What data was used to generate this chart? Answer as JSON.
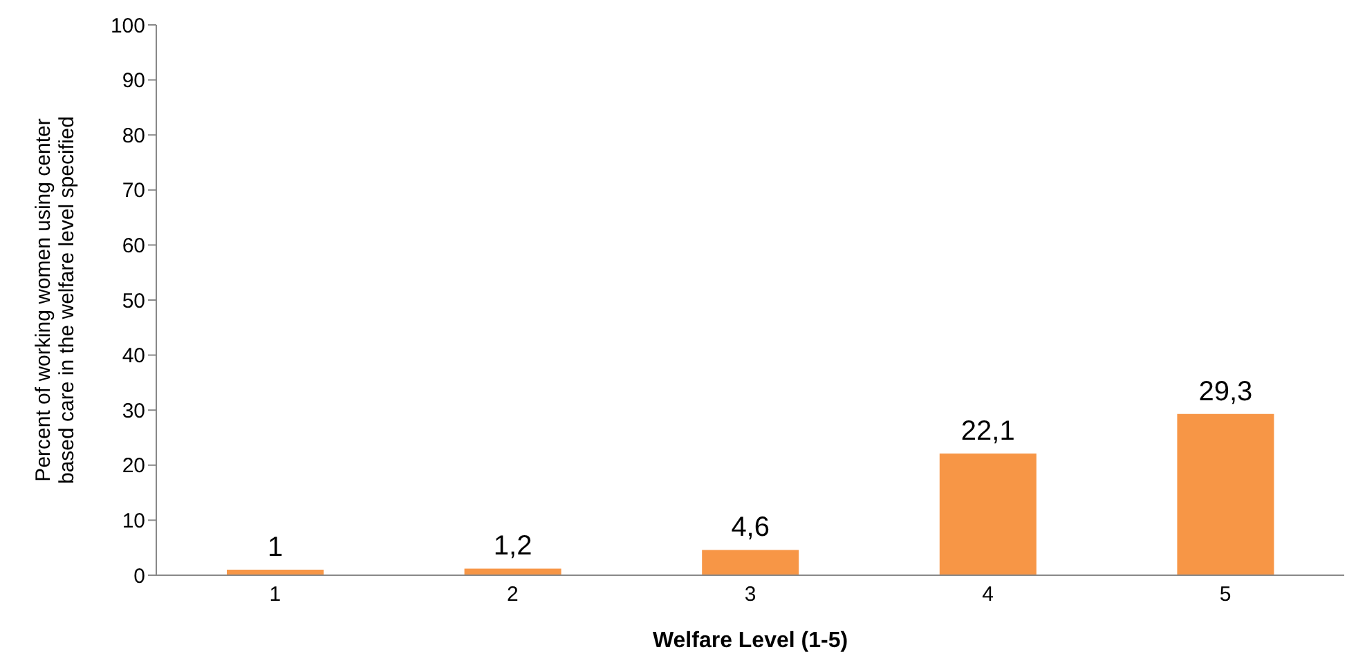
{
  "chart_data": {
    "type": "bar",
    "xlabel": "Welfare Level (1-5)",
    "ylabel": "Percent of working women using center based care in the welfare level specified",
    "categories": [
      "1",
      "2",
      "3",
      "4",
      "5"
    ],
    "values": [
      1,
      1.2,
      4.6,
      22.1,
      29.3
    ],
    "value_labels": [
      "1",
      "1,2",
      "4,6",
      "22,1",
      "29,3"
    ],
    "color": "#f79646",
    "ylim": [
      0,
      100
    ],
    "yticks": [
      0,
      10,
      20,
      30,
      40,
      50,
      60,
      70,
      80,
      90,
      100
    ],
    "grid": false
  }
}
